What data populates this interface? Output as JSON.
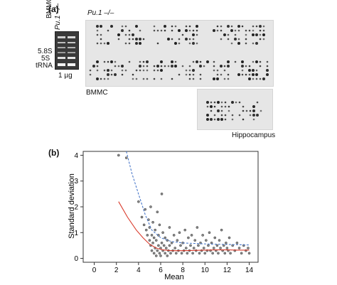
{
  "panel_a": {
    "label": "(a)",
    "gel": {
      "lane_labels": [
        "BMMC",
        "Pu.1 –/–"
      ],
      "band_labels": [
        "5.8S",
        "5S",
        "tRNA"
      ],
      "amount": "1 µg"
    },
    "array_header": "Pu.1 –/–",
    "array_bmmc_label": "BMMC",
    "array_hippo_label": "Hippocampus"
  },
  "panel_b": {
    "label": "(b)",
    "chart_data": {
      "type": "scatter",
      "xlabel": "Mean",
      "ylabel": "Standard deviation",
      "xlim": [
        -1,
        14.8
      ],
      "ylim": [
        -0.15,
        4.15
      ],
      "xticks": [
        0,
        2,
        4,
        6,
        8,
        10,
        12,
        14
      ],
      "yticks": [
        0,
        1,
        2,
        3,
        4
      ],
      "points_note": "dense cloud; representative sample",
      "points": [
        [
          2.2,
          4.0
        ],
        [
          2.9,
          3.9
        ],
        [
          4.0,
          2.2
        ],
        [
          4.3,
          1.6
        ],
        [
          4.5,
          1.3
        ],
        [
          4.6,
          1.9
        ],
        [
          4.7,
          1.1
        ],
        [
          4.8,
          0.9
        ],
        [
          4.9,
          1.5
        ],
        [
          5.0,
          0.7
        ],
        [
          5.0,
          1.2
        ],
        [
          5.1,
          0.5
        ],
        [
          5.1,
          2.0
        ],
        [
          5.2,
          0.9
        ],
        [
          5.2,
          0.3
        ],
        [
          5.3,
          1.4
        ],
        [
          5.3,
          0.6
        ],
        [
          5.4,
          0.2
        ],
        [
          5.4,
          0.8
        ],
        [
          5.5,
          1.1
        ],
        [
          5.5,
          0.4
        ],
        [
          5.6,
          0.1
        ],
        [
          5.6,
          0.7
        ],
        [
          5.7,
          1.8
        ],
        [
          5.7,
          0.3
        ],
        [
          5.8,
          0.5
        ],
        [
          5.8,
          0.9
        ],
        [
          5.9,
          0.2
        ],
        [
          5.9,
          1.3
        ],
        [
          6.0,
          0.4
        ],
        [
          6.0,
          0.1
        ],
        [
          6.1,
          0.6
        ],
        [
          6.1,
          2.5
        ],
        [
          6.2,
          0.3
        ],
        [
          6.2,
          1.0
        ],
        [
          6.3,
          0.5
        ],
        [
          6.4,
          0.2
        ],
        [
          6.4,
          0.8
        ],
        [
          6.5,
          0.4
        ],
        [
          6.6,
          0.1
        ],
        [
          6.6,
          0.7
        ],
        [
          6.7,
          0.3
        ],
        [
          6.8,
          0.5
        ],
        [
          6.8,
          1.2
        ],
        [
          6.9,
          0.2
        ],
        [
          7.0,
          0.6
        ],
        [
          7.1,
          0.3
        ],
        [
          7.2,
          0.9
        ],
        [
          7.3,
          0.4
        ],
        [
          7.4,
          0.2
        ],
        [
          7.5,
          0.7
        ],
        [
          7.6,
          0.3
        ],
        [
          7.7,
          1.0
        ],
        [
          7.8,
          0.5
        ],
        [
          7.9,
          0.2
        ],
        [
          8.0,
          0.6
        ],
        [
          8.1,
          0.3
        ],
        [
          8.2,
          1.1
        ],
        [
          8.3,
          0.4
        ],
        [
          8.4,
          0.2
        ],
        [
          8.5,
          0.8
        ],
        [
          8.6,
          0.3
        ],
        [
          8.7,
          0.5
        ],
        [
          8.8,
          0.9
        ],
        [
          8.9,
          0.2
        ],
        [
          9.0,
          0.4
        ],
        [
          9.1,
          0.7
        ],
        [
          9.2,
          0.3
        ],
        [
          9.3,
          1.2
        ],
        [
          9.4,
          0.5
        ],
        [
          9.5,
          0.2
        ],
        [
          9.6,
          0.6
        ],
        [
          9.7,
          0.3
        ],
        [
          9.8,
          0.9
        ],
        [
          9.9,
          0.4
        ],
        [
          10.0,
          0.2
        ],
        [
          10.1,
          0.7
        ],
        [
          10.2,
          0.3
        ],
        [
          10.3,
          0.5
        ],
        [
          10.4,
          1.0
        ],
        [
          10.5,
          0.3
        ],
        [
          10.6,
          0.6
        ],
        [
          10.7,
          0.2
        ],
        [
          10.8,
          0.4
        ],
        [
          10.9,
          0.8
        ],
        [
          11.0,
          0.3
        ],
        [
          11.1,
          0.5
        ],
        [
          11.2,
          0.2
        ],
        [
          11.3,
          0.7
        ],
        [
          11.4,
          0.4
        ],
        [
          11.5,
          1.1
        ],
        [
          11.6,
          0.3
        ],
        [
          11.7,
          0.5
        ],
        [
          11.8,
          0.2
        ],
        [
          11.9,
          0.6
        ],
        [
          12.0,
          0.4
        ],
        [
          12.1,
          0.3
        ],
        [
          12.2,
          0.8
        ],
        [
          12.3,
          0.2
        ],
        [
          12.5,
          0.5
        ],
        [
          12.7,
          0.3
        ],
        [
          12.9,
          0.6
        ],
        [
          13.1,
          0.4
        ],
        [
          13.3,
          0.2
        ],
        [
          13.5,
          0.5
        ],
        [
          13.7,
          0.3
        ],
        [
          13.9,
          0.4
        ],
        [
          14.0,
          0.2
        ]
      ],
      "series": [
        {
          "style": "dashed",
          "color": "#4a78c9",
          "x": [
            2.9,
            3.4,
            4.0,
            4.6,
            5.2,
            6.0,
            7.0,
            8.0,
            9.0,
            10.0,
            11.0,
            12.0,
            13.0,
            14.0
          ],
          "y": [
            4.15,
            3.3,
            2.5,
            1.7,
            1.1,
            0.8,
            0.65,
            0.6,
            0.58,
            0.56,
            0.55,
            0.54,
            0.53,
            0.52
          ]
        },
        {
          "style": "solid",
          "color": "#d93a2b",
          "x": [
            2.2,
            3.0,
            3.8,
            4.4,
            5.0,
            5.6,
            6.2,
            7.0,
            8.0,
            9.0,
            10.0,
            11.0,
            12.0,
            13.0,
            14.0
          ],
          "y": [
            2.2,
            1.6,
            1.1,
            0.8,
            0.55,
            0.4,
            0.33,
            0.3,
            0.3,
            0.31,
            0.32,
            0.33,
            0.33,
            0.32,
            0.32
          ]
        }
      ]
    }
  }
}
